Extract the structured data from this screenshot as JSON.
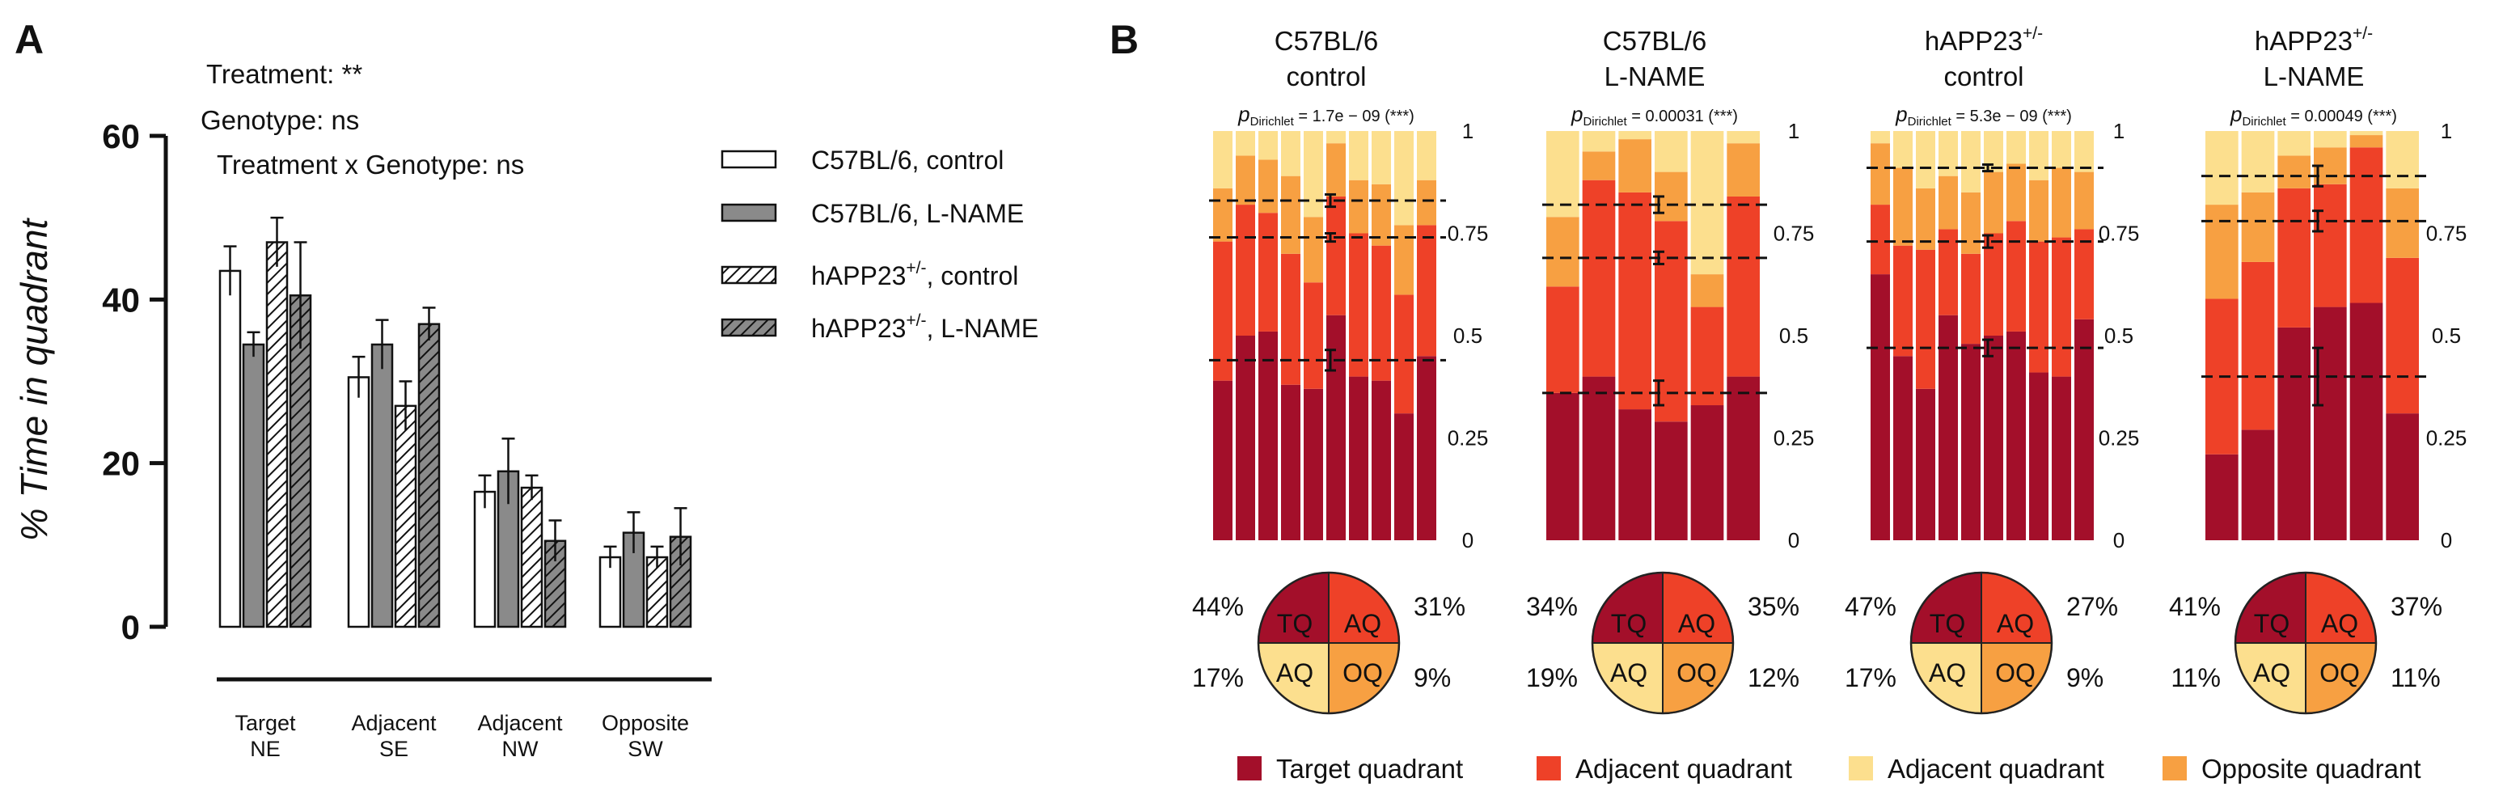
{
  "colors": {
    "target": "#A30F2A",
    "adjacent1": "#EE4128",
    "adjacent2": "#FCDF8E",
    "opposite": "#F7A042"
  },
  "panel_a": {
    "panel_label": "A",
    "stats": [
      "Treatment: **",
      "Genotype: ns",
      "Treatment x Genotype: ns"
    ],
    "legend": [
      "C57BL/6, control",
      "C57BL/6, L-NAME",
      "hAPP23",
      "hAPP23"
    ],
    "legend_sup": [
      "",
      "",
      "+/-",
      "+/-"
    ],
    "legend_tail": [
      "",
      "",
      ", control",
      ", L-NAME"
    ]
  },
  "panel_b": {
    "panel_label": "B",
    "legend": [
      "Target quadrant",
      "Adjacent quadrant",
      "Adjacent quadrant",
      "Opposite quadrant"
    ]
  },
  "chart_data": [
    {
      "type": "bar",
      "ylabel": "% Time in quadrant",
      "ylim": [
        0,
        60
      ],
      "yticks": [
        "0",
        "20",
        "40",
        "60"
      ],
      "categories": [
        [
          "Target",
          "NE"
        ],
        [
          "Adjacent",
          "SE"
        ],
        [
          "Adjacent",
          "NW"
        ],
        [
          "Opposite",
          "SW"
        ]
      ],
      "series": [
        {
          "name": "C57BL/6, control",
          "values": [
            43.5,
            30.5,
            16.5,
            8.5
          ],
          "errors": [
            3,
            2.5,
            2,
            1.3
          ],
          "fill": "white"
        },
        {
          "name": "C57BL/6, L-NAME",
          "values": [
            34.5,
            34.5,
            19,
            11.5
          ],
          "errors": [
            1.5,
            3,
            4,
            2.5
          ],
          "fill": "gray"
        },
        {
          "name": "hAPP23+/-, control",
          "values": [
            47,
            27,
            17,
            8.5
          ],
          "errors": [
            3,
            3,
            1.5,
            1.3
          ],
          "fill": "hatch"
        },
        {
          "name": "hAPP23+/-, L-NAME",
          "values": [
            40.5,
            37,
            10.5,
            11
          ],
          "errors": [
            6.5,
            2,
            2.5,
            3.5
          ],
          "fill": "hatch-gray"
        }
      ]
    },
    {
      "type": "bar",
      "stacked": true,
      "ylim": [
        0,
        1
      ],
      "yticks": [
        "0",
        "0.25",
        "0.5",
        "0.75",
        "1"
      ],
      "groups": [
        {
          "title": [
            "C57BL/6",
            "control"
          ],
          "title_sup": "",
          "p": "1.7e − 09 (***)",
          "bars": [
            [
              0.39,
              0.73,
              0.86
            ],
            [
              0.5,
              0.82,
              0.94
            ],
            [
              0.51,
              0.8,
              0.93
            ],
            [
              0.38,
              0.7,
              0.89
            ],
            [
              0.37,
              0.63,
              0.79
            ],
            [
              0.55,
              0.84,
              0.97
            ],
            [
              0.4,
              0.75,
              0.88
            ],
            [
              0.39,
              0.72,
              0.87
            ],
            [
              0.31,
              0.6,
              0.77
            ],
            [
              0.45,
              0.77,
              0.88
            ]
          ],
          "means": [
            0.44,
            0.74,
            0.83
          ],
          "errs": [
            0.025,
            0.01,
            0.015
          ],
          "pie": [
            "44%",
            "31%",
            "17%",
            "9%"
          ]
        },
        {
          "title": [
            "C57BL/6",
            "L-NAME"
          ],
          "title_sup": "",
          "p": "0.00031 (***)",
          "bars": [
            [
              0.36,
              0.62,
              0.79
            ],
            [
              0.4,
              0.88,
              0.95
            ],
            [
              0.32,
              0.85,
              0.98
            ],
            [
              0.29,
              0.78,
              0.9
            ],
            [
              0.33,
              0.57,
              0.65
            ],
            [
              0.4,
              0.84,
              0.97
            ]
          ],
          "means": [
            0.36,
            0.69,
            0.82
          ],
          "errs": [
            0.03,
            0.015,
            0.02
          ],
          "pie": [
            "34%",
            "35%",
            "19%",
            "12%"
          ]
        },
        {
          "title": [
            "hAPP23",
            "control"
          ],
          "title_sup": "+/-",
          "p": "5.3e − 09 (***)",
          "bars": [
            [
              0.65,
              0.82,
              0.97
            ],
            [
              0.45,
              0.72,
              0.91
            ],
            [
              0.37,
              0.71,
              0.86
            ],
            [
              0.55,
              0.76,
              0.89
            ],
            [
              0.48,
              0.7,
              0.85
            ],
            [
              0.5,
              0.75,
              0.9
            ],
            [
              0.51,
              0.78,
              0.92
            ],
            [
              0.41,
              0.73,
              0.88
            ],
            [
              0.4,
              0.74,
              0.91
            ],
            [
              0.54,
              0.76,
              0.9
            ]
          ],
          "means": [
            0.47,
            0.73,
            0.91
          ],
          "errs": [
            0.02,
            0.015,
            0.008
          ],
          "pie": [
            "47%",
            "27%",
            "17%",
            "9%"
          ]
        },
        {
          "title": [
            "hAPP23",
            "L-NAME"
          ],
          "title_sup": "+/-",
          "p": "0.00049 (***)",
          "bars": [
            [
              0.21,
              0.59,
              0.82
            ],
            [
              0.27,
              0.68,
              0.85
            ],
            [
              0.52,
              0.86,
              0.94
            ],
            [
              0.57,
              0.87,
              0.96
            ],
            [
              0.58,
              0.96,
              0.99
            ],
            [
              0.31,
              0.69,
              0.86
            ]
          ],
          "means": [
            0.4,
            0.78,
            0.89
          ],
          "errs": [
            0.07,
            0.025,
            0.025
          ],
          "pie": [
            "41%",
            "37%",
            "11%",
            "11%"
          ]
        }
      ],
      "pie_labels": [
        "TQ",
        "AQ",
        "AQ",
        "OQ"
      ]
    }
  ]
}
